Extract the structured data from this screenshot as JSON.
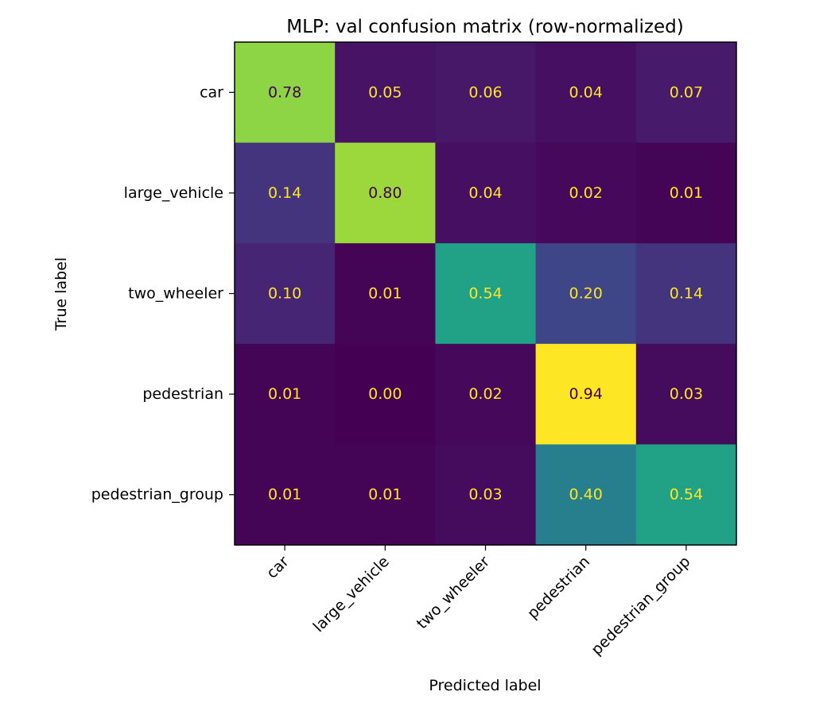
{
  "chart_data": {
    "type": "heatmap",
    "title": "MLP: val confusion matrix (row-normalized)",
    "xlabel": "Predicted label",
    "ylabel": "True label",
    "x_categories": [
      "car",
      "large_vehicle",
      "two_wheeler",
      "pedestrian",
      "pedestrian_group"
    ],
    "y_categories": [
      "car",
      "large_vehicle",
      "two_wheeler",
      "pedestrian",
      "pedestrian_group"
    ],
    "values": [
      [
        0.78,
        0.05,
        0.06,
        0.04,
        0.07
      ],
      [
        0.14,
        0.8,
        0.04,
        0.02,
        0.01
      ],
      [
        0.1,
        0.01,
        0.54,
        0.2,
        0.14
      ],
      [
        0.01,
        0.0,
        0.02,
        0.94,
        0.03
      ],
      [
        0.01,
        0.01,
        0.03,
        0.4,
        0.54
      ]
    ],
    "value_format": "0.00",
    "colormap": "viridis",
    "color_range": [
      0,
      0.94
    ],
    "text_colors": {
      "on_dark": "#fde725",
      "on_light": "#440154"
    }
  }
}
